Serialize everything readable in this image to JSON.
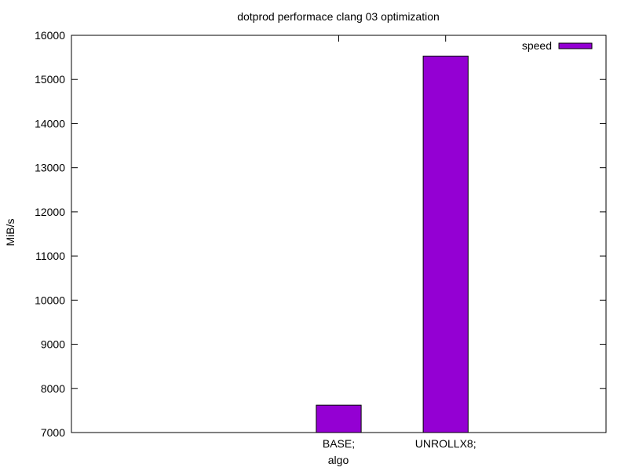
{
  "chart_data": {
    "type": "bar",
    "title": "dotprod performace clang 03 optimization",
    "xlabel": "algo",
    "ylabel": "MiB/s",
    "categories": [
      "",
      "",
      "BASE;",
      "UNROLLX8;",
      ""
    ],
    "series": [
      {
        "name": "speed",
        "values": [
          null,
          null,
          7620,
          15530,
          null
        ],
        "color": "#9400d3"
      }
    ],
    "ylim": [
      7000,
      16000
    ],
    "yticks": [
      7000,
      8000,
      9000,
      10000,
      11000,
      12000,
      13000,
      14000,
      15000,
      16000
    ],
    "grid": false,
    "legend": "top-right"
  }
}
